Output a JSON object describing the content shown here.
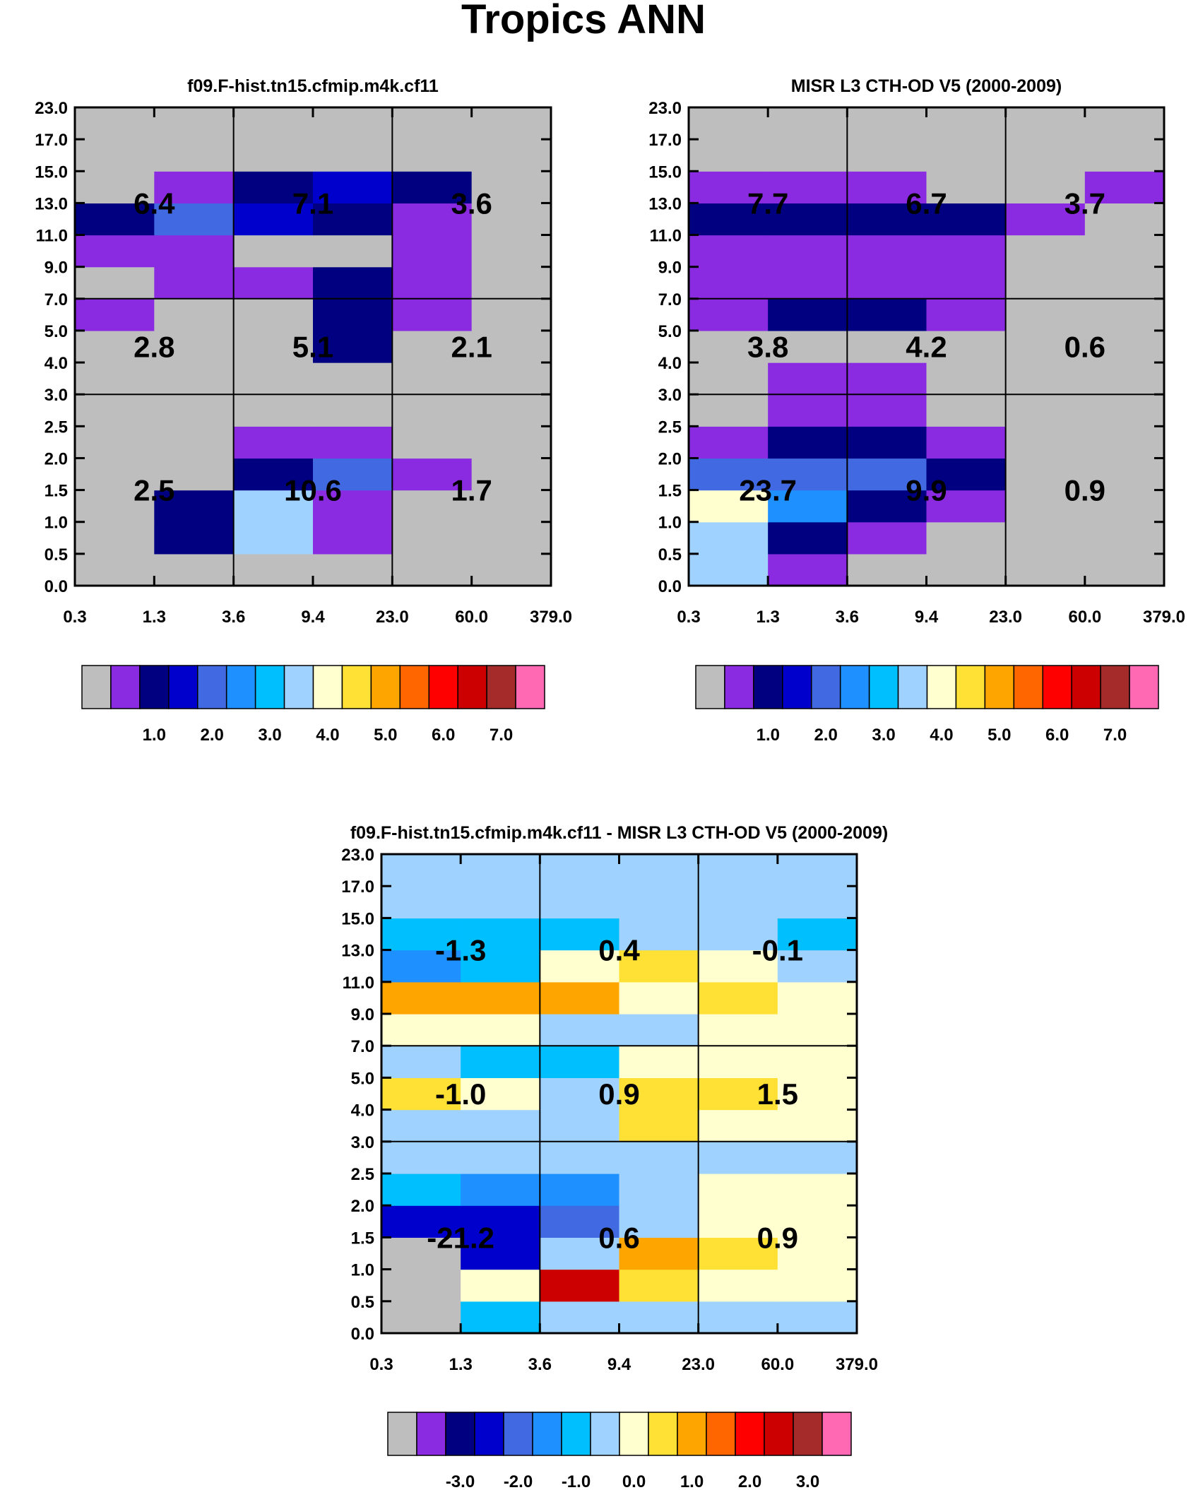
{
  "figure_title": "Tropics ANN",
  "x_tick_labels": [
    "0.3",
    "1.3",
    "3.6",
    "9.4",
    "23.0",
    "60.0",
    "379.0"
  ],
  "y_tick_labels": [
    "0.0",
    "0.5",
    "1.0",
    "1.5",
    "2.0",
    "2.5",
    "3.0",
    "4.0",
    "5.0",
    "7.0",
    "9.0",
    "11.0",
    "13.0",
    "15.0",
    "17.0",
    "23.0"
  ],
  "colors": {
    "scale": [
      "#bebebe",
      "#8a2be2",
      "#000080",
      "#0000cd",
      "#4169e1",
      "#1e90ff",
      "#00bfff",
      "#a0d2ff",
      "#ffffd0",
      "#ffe135",
      "#ffa500",
      "#ff6600",
      "#ff0000",
      "#cc0000",
      "#a52a2a",
      "#ff69b4"
    ]
  },
  "colorbars": {
    "abs_labels": [
      "1.0",
      "2.0",
      "3.0",
      "4.0",
      "5.0",
      "6.0",
      "7.0"
    ],
    "diff_labels": [
      "-3.0",
      "-2.0",
      "-1.0",
      "0.0",
      "1.0",
      "2.0",
      "3.0"
    ]
  },
  "chart_data": [
    {
      "type": "heatmap",
      "id": "model",
      "title": "f09.F-hist.tn15.cfmip.m4k.cf11",
      "xlabel": "",
      "ylabel": "",
      "grid": [
        [
          0,
          0,
          0,
          0,
          0,
          0
        ],
        [
          0,
          2,
          7,
          1,
          0,
          0
        ],
        [
          0,
          2,
          7,
          1,
          0,
          0
        ],
        [
          0,
          0,
          2,
          4,
          1,
          0
        ],
        [
          0,
          0,
          1,
          1,
          0,
          0
        ],
        [
          0,
          0,
          0,
          0,
          0,
          0
        ],
        [
          0,
          0,
          0,
          0,
          0,
          0
        ],
        [
          0,
          0,
          0,
          2,
          0,
          0
        ],
        [
          1,
          0,
          0,
          2,
          1,
          0
        ],
        [
          0,
          1,
          1,
          2,
          1,
          0
        ],
        [
          1,
          1,
          0,
          0,
          1,
          0
        ],
        [
          2,
          4,
          3,
          2,
          1,
          0
        ],
        [
          0,
          1,
          2,
          3,
          2,
          0
        ],
        [
          0,
          0,
          0,
          0,
          0,
          0
        ],
        [
          0,
          0,
          0,
          0,
          0,
          0
        ]
      ],
      "box_values": [
        [
          "2.5",
          "10.6",
          "1.7"
        ],
        [
          "2.8",
          "5.1",
          "2.1"
        ],
        [
          "6.4",
          "7.1",
          "3.6"
        ]
      ]
    },
    {
      "type": "heatmap",
      "id": "obs",
      "title": "MISR L3 CTH-OD V5 (2000-2009)",
      "xlabel": "",
      "ylabel": "",
      "grid": [
        [
          7,
          1,
          0,
          0,
          0,
          0
        ],
        [
          7,
          2,
          1,
          0,
          0,
          0
        ],
        [
          8,
          5,
          2,
          1,
          0,
          0
        ],
        [
          4,
          4,
          4,
          2,
          0,
          0
        ],
        [
          1,
          2,
          2,
          1,
          0,
          0
        ],
        [
          0,
          1,
          1,
          0,
          0,
          0
        ],
        [
          0,
          1,
          1,
          0,
          0,
          0
        ],
        [
          0,
          0,
          0,
          0,
          0,
          0
        ],
        [
          1,
          2,
          2,
          1,
          0,
          0
        ],
        [
          1,
          1,
          1,
          1,
          0,
          0
        ],
        [
          1,
          1,
          1,
          1,
          0,
          0
        ],
        [
          2,
          2,
          2,
          2,
          1,
          0
        ],
        [
          1,
          1,
          1,
          0,
          0,
          1
        ],
        [
          0,
          0,
          0,
          0,
          0,
          0
        ],
        [
          0,
          0,
          0,
          0,
          0,
          0
        ]
      ],
      "box_values": [
        [
          "23.7",
          "9.9",
          "0.9"
        ],
        [
          "3.8",
          "4.2",
          "0.6"
        ],
        [
          "7.7",
          "6.7",
          "3.7"
        ]
      ]
    },
    {
      "type": "heatmap",
      "id": "diff",
      "title": "f09.F-hist.tn15.cfmip.m4k.cf11 - MISR L3 CTH-OD V5 (2000-2009)",
      "xlabel": "",
      "ylabel": "",
      "grid": [
        [
          0,
          6,
          7,
          7,
          7,
          7
        ],
        [
          0,
          8,
          13,
          9,
          8,
          8
        ],
        [
          0,
          3,
          7,
          10,
          9,
          8
        ],
        [
          3,
          3,
          4,
          7,
          8,
          8
        ],
        [
          6,
          5,
          5,
          7,
          8,
          8
        ],
        [
          7,
          7,
          7,
          7,
          7,
          7
        ],
        [
          7,
          7,
          7,
          9,
          8,
          8
        ],
        [
          9,
          8,
          7,
          9,
          9,
          8
        ],
        [
          7,
          6,
          6,
          8,
          8,
          8
        ],
        [
          8,
          8,
          7,
          7,
          8,
          8
        ],
        [
          10,
          10,
          10,
          8,
          9,
          8
        ],
        [
          5,
          6,
          8,
          9,
          8,
          7
        ],
        [
          6,
          6,
          6,
          7,
          7,
          6
        ],
        [
          7,
          7,
          7,
          7,
          7,
          7
        ],
        [
          7,
          7,
          7,
          7,
          7,
          7
        ]
      ],
      "box_values": [
        [
          "-21.2",
          "0.6",
          "0.9"
        ],
        [
          "-1.0",
          "0.9",
          "1.5"
        ],
        [
          "-1.3",
          "0.4",
          "-0.1"
        ]
      ]
    }
  ]
}
